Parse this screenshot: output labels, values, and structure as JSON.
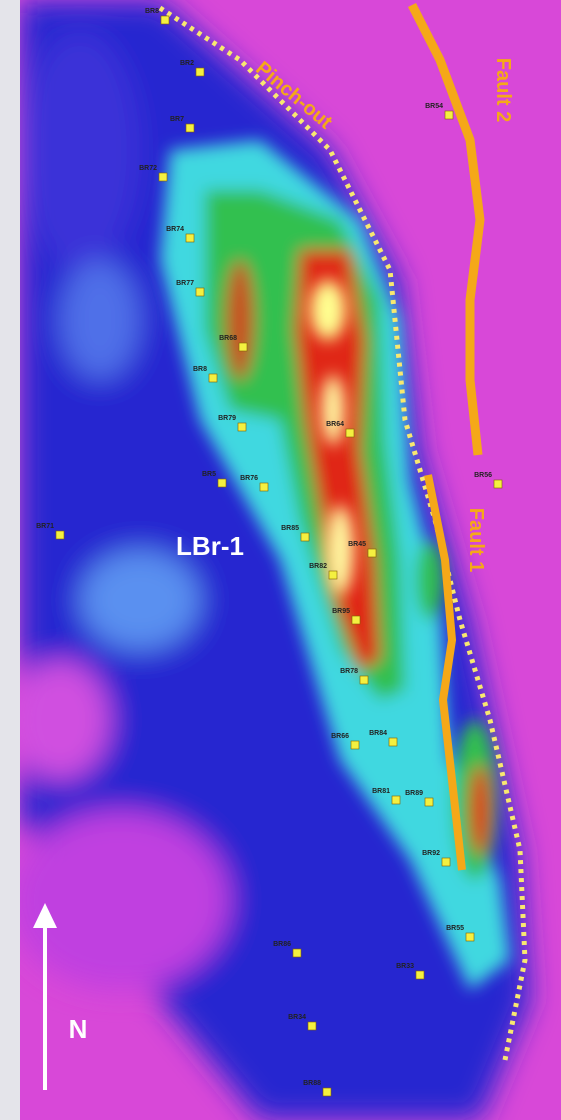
{
  "labels": {
    "pinch_out": "Pinch-out",
    "fault_2": "Fault 2",
    "fault_1": "Fault 1",
    "field": "LBr-1",
    "north": "N"
  },
  "wells": [
    "BR8",
    "BR2",
    "BR7",
    "BR72",
    "BR74",
    "BR77",
    "BR68",
    "BR8",
    "BR79",
    "BR5",
    "BR76",
    "BR71",
    "BR64",
    "BR85",
    "BR45",
    "BR82",
    "BR95",
    "BR78",
    "BR66",
    "BR84",
    "BR81",
    "BR89",
    "BR92",
    "BR55",
    "BR86",
    "BR33",
    "BR34",
    "BR88",
    "BR56",
    "BR54"
  ]
}
